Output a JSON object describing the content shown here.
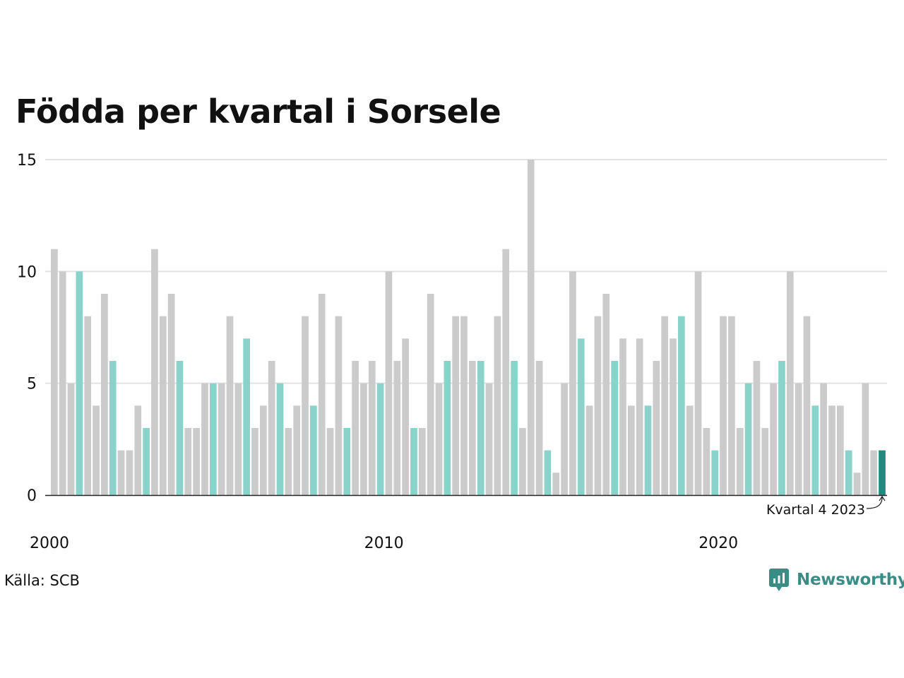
{
  "chart_data": {
    "type": "bar",
    "title": "Födda per kvartal i Sorsele",
    "xlabel": "",
    "ylabel": "",
    "ylim": [
      0,
      15
    ],
    "yticks": [
      0,
      5,
      10,
      15
    ],
    "grid": true,
    "x_labels": [
      {
        "year": "2000",
        "index": 0
      },
      {
        "year": "2010",
        "index": 40
      },
      {
        "year": "2020",
        "index": 80
      }
    ],
    "start": {
      "year": 2000,
      "quarter": 1
    },
    "highlight_quarter": 4,
    "values": [
      11,
      10,
      5,
      10,
      8,
      4,
      9,
      6,
      2,
      2,
      4,
      3,
      11,
      8,
      9,
      6,
      3,
      3,
      5,
      5,
      5,
      8,
      5,
      7,
      3,
      4,
      6,
      5,
      3,
      4,
      8,
      4,
      9,
      3,
      8,
      3,
      6,
      5,
      6,
      5,
      10,
      6,
      7,
      3,
      3,
      9,
      5,
      6,
      8,
      8,
      6,
      6,
      5,
      8,
      11,
      6,
      3,
      15,
      6,
      2,
      1,
      5,
      10,
      7,
      4,
      8,
      9,
      6,
      7,
      4,
      7,
      4,
      6,
      8,
      7,
      8,
      4,
      10,
      3,
      2,
      8,
      8,
      3,
      5,
      6,
      3,
      5,
      6,
      10,
      5,
      8,
      4,
      5,
      4,
      4,
      2,
      1,
      5,
      2,
      2
    ],
    "annotation": "Kvartal 4 2023",
    "colors": {
      "bar": "#cbcbcb",
      "q4": "#8ad3cb",
      "latest": "#1f8a7d",
      "grid": "#e2e2e2",
      "axis": "#222222"
    }
  },
  "source": "Källa: SCB",
  "brand": {
    "name": "Newsworthy",
    "icon": "chart-bubble-icon",
    "color": "#3a8d84"
  }
}
